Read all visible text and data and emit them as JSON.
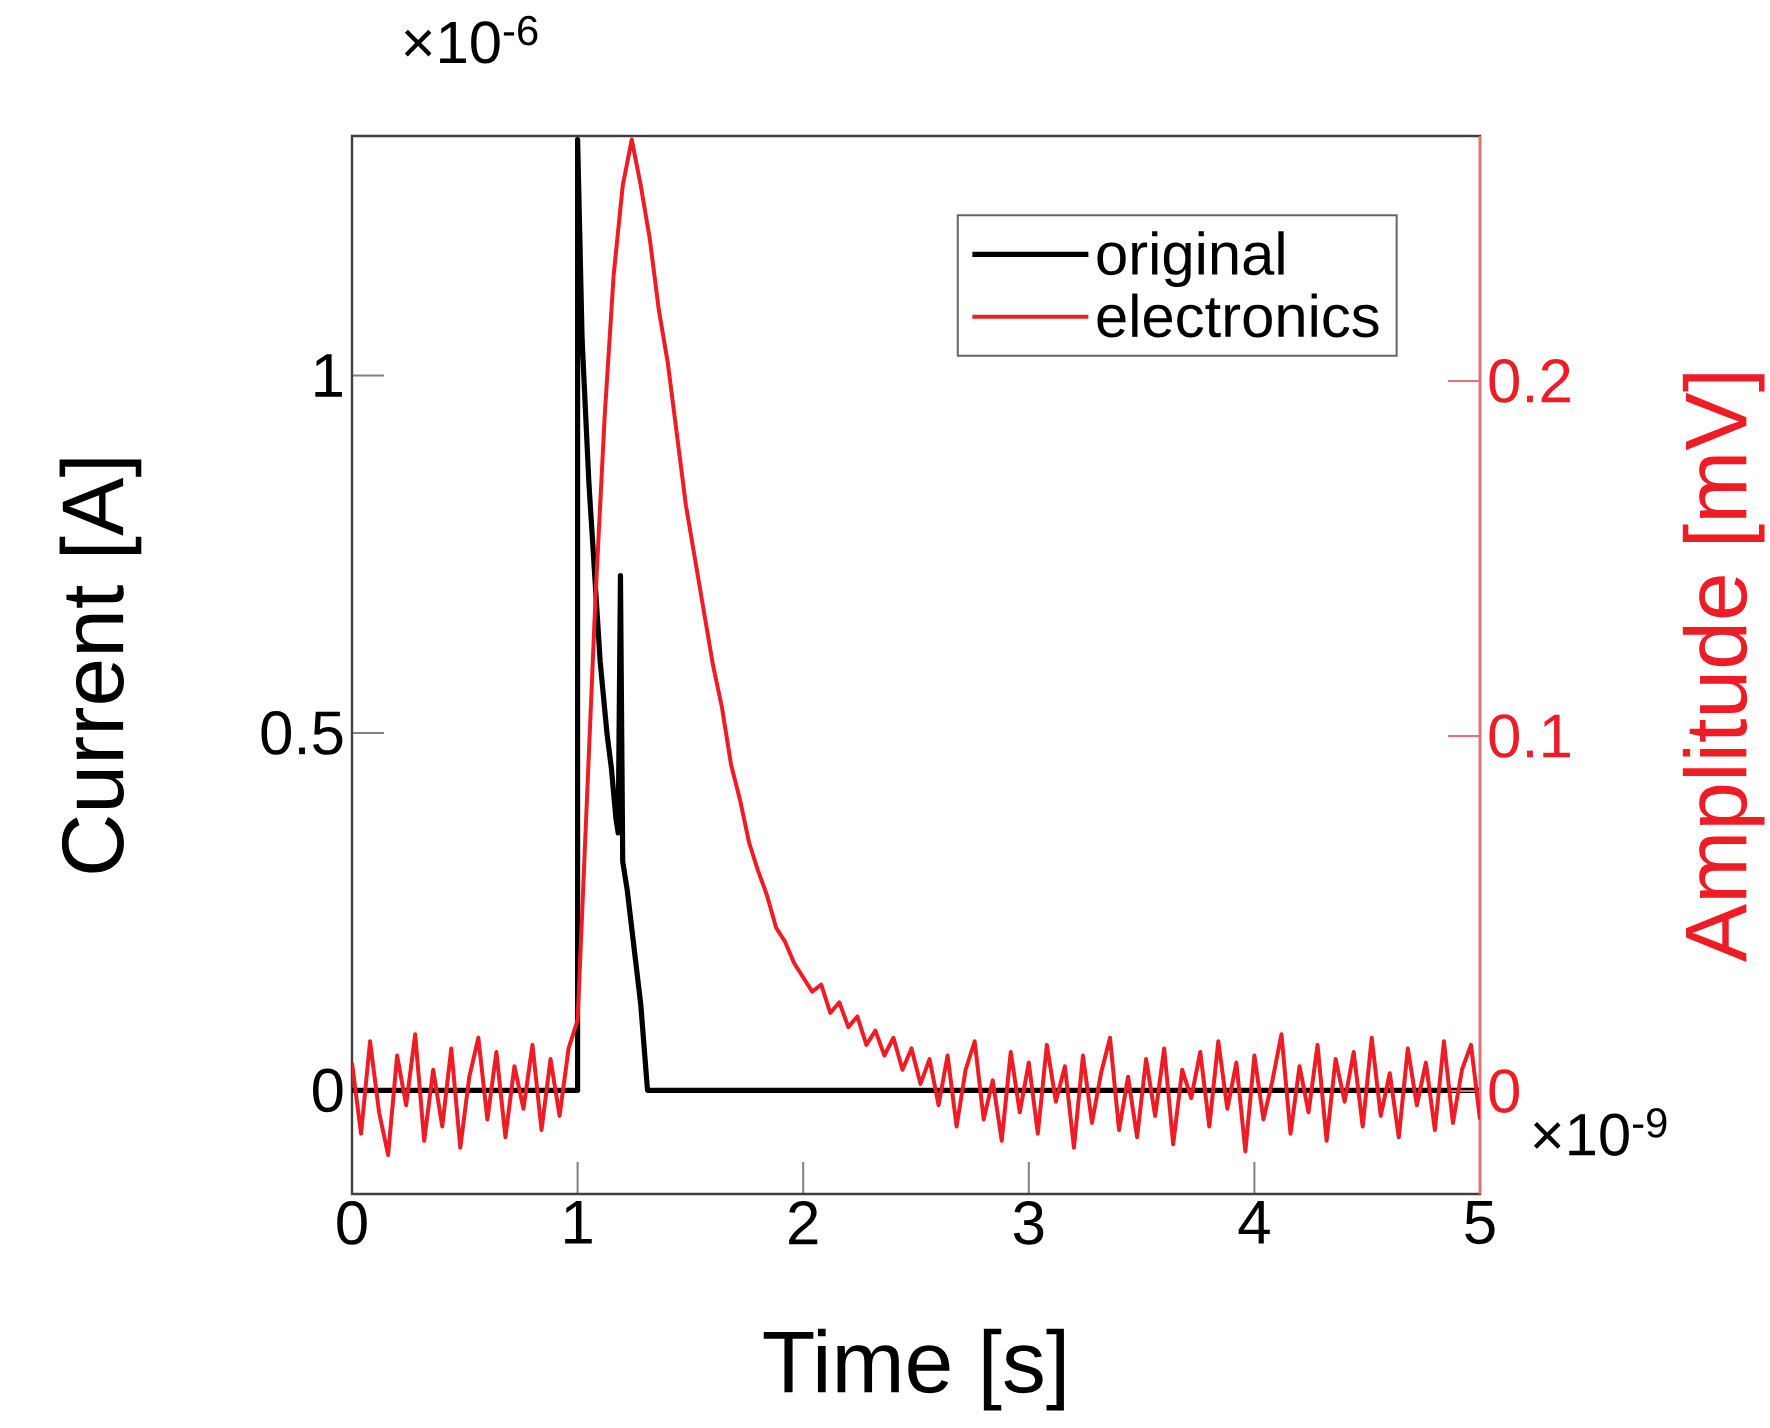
{
  "chart_data": {
    "type": "line",
    "xlabel": "Time [s]",
    "ylabel": "Current [A]",
    "y2label": "Amplitude [mV]",
    "annotations": [
      "×10$^{-6}$",
      "×10$^{-9}$"
    ],
    "xlim": [
      0,
      5
    ],
    "ylim": [
      -0.145,
      1.335
    ],
    "y2lim": [
      -0.029,
      0.269
    ],
    "xticks": [
      0,
      1,
      2,
      3,
      4,
      5
    ],
    "yticks": [
      0,
      0.5,
      1
    ],
    "y2ticks": [
      0,
      0.1,
      0.2
    ],
    "legend": "top right",
    "line_style": "solid",
    "series": [
      {
        "name": "original",
        "color": "#000000",
        "x": [
          0,
          1.0,
          1.0,
          1.02,
          1.05,
          1.08,
          1.1,
          1.13,
          1.15,
          1.17,
          1.18,
          1.19,
          1.2,
          1.22,
          1.25,
          1.28,
          1.31,
          5
        ],
        "values": [
          0,
          0,
          1.33,
          1.05,
          0.85,
          0.7,
          0.6,
          0.5,
          0.45,
          0.38,
          0.36,
          0.72,
          0.32,
          0.28,
          0.2,
          0.12,
          0,
          0
        ]
      },
      {
        "name": "electronics",
        "color": "#ee1c25",
        "axis": "y2",
        "x": [
          0,
          0.04,
          0.08,
          0.12,
          0.16,
          0.2,
          0.24,
          0.28,
          0.32,
          0.36,
          0.4,
          0.44,
          0.48,
          0.52,
          0.56,
          0.6,
          0.64,
          0.68,
          0.72,
          0.76,
          0.8,
          0.84,
          0.88,
          0.92,
          0.96,
          1.0,
          1.04,
          1.08,
          1.12,
          1.16,
          1.2,
          1.24,
          1.28,
          1.32,
          1.36,
          1.4,
          1.44,
          1.48,
          1.52,
          1.56,
          1.6,
          1.64,
          1.68,
          1.72,
          1.76,
          1.8,
          1.84,
          1.88,
          1.92,
          1.96,
          2.0,
          2.04,
          2.08,
          2.12,
          2.16,
          2.2,
          2.24,
          2.28,
          2.32,
          2.36,
          2.4,
          2.44,
          2.48,
          2.52,
          2.56,
          2.6,
          2.64,
          2.68,
          2.72,
          2.76,
          2.8,
          2.84,
          2.88,
          2.92,
          2.96,
          3.0,
          3.04,
          3.08,
          3.12,
          3.16,
          3.2,
          3.24,
          3.28,
          3.32,
          3.36,
          3.4,
          3.44,
          3.48,
          3.52,
          3.56,
          3.6,
          3.64,
          3.68,
          3.72,
          3.76,
          3.8,
          3.84,
          3.88,
          3.92,
          3.96,
          4.0,
          4.04,
          4.08,
          4.12,
          4.16,
          4.2,
          4.24,
          4.28,
          4.32,
          4.36,
          4.4,
          4.44,
          4.48,
          4.52,
          4.56,
          4.6,
          4.64,
          4.68,
          4.72,
          4.76,
          4.8,
          4.84,
          4.88,
          4.92,
          4.96,
          5.0
        ],
        "values": [
          0.008,
          -0.012,
          0.014,
          -0.006,
          -0.018,
          0.01,
          -0.004,
          0.016,
          -0.014,
          0.006,
          -0.01,
          0.012,
          -0.016,
          0.004,
          0.015,
          -0.008,
          0.011,
          -0.013,
          0.007,
          -0.005,
          0.013,
          -0.011,
          0.009,
          -0.007,
          0.012,
          0.02,
          0.08,
          0.14,
          0.19,
          0.23,
          0.255,
          0.268,
          0.255,
          0.24,
          0.22,
          0.205,
          0.185,
          0.165,
          0.15,
          0.135,
          0.12,
          0.108,
          0.092,
          0.082,
          0.07,
          0.062,
          0.055,
          0.046,
          0.042,
          0.036,
          0.032,
          0.028,
          0.03,
          0.022,
          0.025,
          0.018,
          0.021,
          0.013,
          0.017,
          0.01,
          0.015,
          0.006,
          0.012,
          0.002,
          0.009,
          -0.004,
          0.01,
          -0.01,
          0.006,
          0.014,
          -0.008,
          0.003,
          -0.014,
          0.011,
          -0.006,
          0.008,
          -0.012,
          0.013,
          -0.003,
          0.007,
          -0.016,
          0.01,
          -0.009,
          0.005,
          0.015,
          -0.011,
          0.004,
          -0.013,
          0.009,
          -0.007,
          0.012,
          -0.015,
          0.006,
          -0.002,
          0.011,
          -0.01,
          0.014,
          -0.005,
          0.008,
          -0.017,
          0.01,
          -0.008,
          0.003,
          0.016,
          -0.012,
          0.007,
          -0.006,
          0.013,
          -0.014,
          0.009,
          -0.003,
          0.011,
          -0.01,
          0.015,
          -0.007,
          0.005,
          -0.013,
          0.012,
          -0.004,
          0.008,
          -0.011,
          0.014,
          -0.009,
          0.006,
          0.013,
          -0.008
        ]
      }
    ]
  }
}
